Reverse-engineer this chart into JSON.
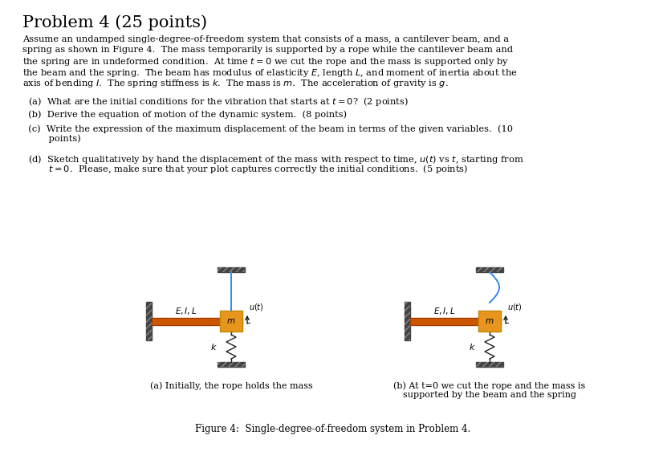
{
  "title": "Problem 4 (25 points)",
  "bg_color": "#ffffff",
  "beam_color": "#cc5500",
  "mass_color": "#e8951e",
  "wall_color": "#444444",
  "floor_color": "#444444",
  "rope_color": "#3388ee",
  "spring_color": "#222222",
  "fig_caption_a": "(a) Initially, the rope holds the mass",
  "fig_caption_b_line1": "(b) At t=0 we cut the rope and the mass is",
  "fig_caption_b_line2": "supported by the beam and the spring",
  "fig_title": "Figure 4:  Single-degree-of-freedom system in Problem 4.",
  "body_lines": [
    "Assume an undamped single-degree-of-freedom system that consists of a mass, a cantilever beam, and a",
    "spring as shown in Figure 4.  The mass temporarily is supported by a rope while the cantilever beam and",
    "the spring are in undeformed condition.  At time $t = 0$ we cut the rope and the mass is supported only by",
    "the beam and the spring.  The beam has modulus of elasticity $E$, length $L$, and moment of inertia about the",
    "axis of bending $I$.  The spring stiffness is $k$.  The mass is $m$.  The acceleration of gravity is $g$."
  ],
  "qa_lines": [
    [
      "  (a)  What are the initial conditions for the vibration that starts at $t = 0$?  (2 points)",
      0
    ],
    [
      "  (b)  Derive the equation of motion of the dynamic system.  (8 points)",
      0
    ],
    [
      "  (c)  Write the expression of the maximum displacement of the beam in terms of the given variables.  (10",
      0
    ],
    [
      "         points)",
      14
    ],
    [
      "  (d)  Sketch qualitatively by hand the displacement of the mass with respect to time, $u(t)$ vs $t$, starting from",
      0
    ],
    [
      "         $t = 0$.  Please, make sure that your plot captures correctly the initial conditions.  (5 points)",
      14
    ]
  ]
}
